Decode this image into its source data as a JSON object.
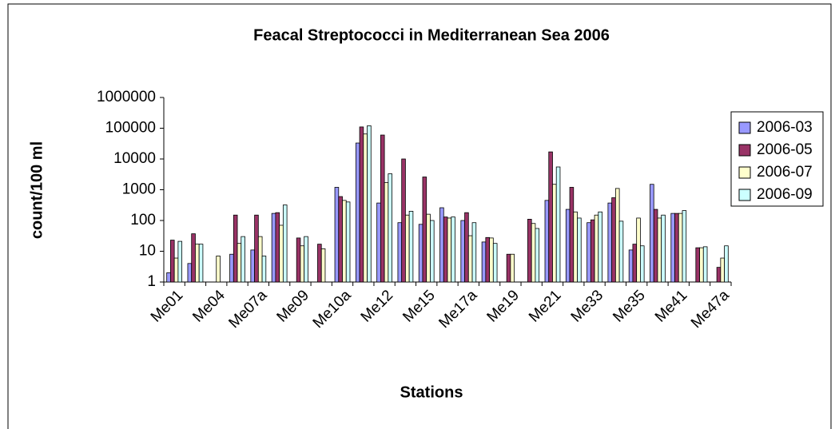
{
  "chart_data": {
    "type": "bar",
    "title": "Feacal Streptococci in Mediterranean Sea 2006",
    "xlabel": "Stations",
    "ylabel": "count/100 ml",
    "categories": [
      "Me01",
      null,
      "Me04",
      null,
      "Me07a",
      null,
      "Me09",
      null,
      "Me10a",
      null,
      "Me12",
      null,
      "Me15",
      null,
      "Me17a",
      null,
      "Me19",
      null,
      "Me21",
      null,
      "Me33",
      null,
      "Me35",
      null,
      "Me41",
      null,
      "Me47a"
    ],
    "series": [
      {
        "name": "2006-03",
        "color": "#9999ff",
        "values": [
          2,
          4,
          null,
          8,
          11,
          170,
          null,
          null,
          1200,
          33000,
          370,
          85,
          75,
          260,
          100,
          20,
          null,
          null,
          450,
          230,
          85,
          370,
          11,
          1500,
          170,
          null,
          null
        ]
      },
      {
        "name": "2006-05",
        "color": "#993366",
        "values": [
          23,
          37,
          null,
          150,
          150,
          180,
          27,
          17,
          600,
          110000,
          60000,
          10000,
          2600,
          130,
          180,
          28,
          8,
          110,
          17000,
          1200,
          105,
          550,
          17,
          230,
          170,
          13,
          3
        ]
      },
      {
        "name": "2006-07",
        "color": "#ffffcc",
        "values": [
          6,
          17,
          7,
          18,
          30,
          70,
          15,
          12,
          450,
          65000,
          1700,
          150,
          160,
          120,
          32,
          27,
          8,
          80,
          1500,
          190,
          150,
          1100,
          120,
          120,
          170,
          13,
          6
        ]
      },
      {
        "name": "2006-09",
        "color": "#ccffff",
        "values": [
          21,
          17,
          null,
          30,
          7,
          320,
          30,
          null,
          400,
          120000,
          3300,
          200,
          100,
          130,
          85,
          18,
          null,
          55,
          5500,
          120,
          190,
          95,
          15,
          150,
          210,
          14,
          15
        ]
      }
    ],
    "log_scale": true,
    "ylim": [
      1,
      1000000
    ],
    "yticks": [
      1,
      10,
      100,
      1000,
      10000,
      100000,
      1000000
    ],
    "grid": false,
    "legend": "right"
  }
}
